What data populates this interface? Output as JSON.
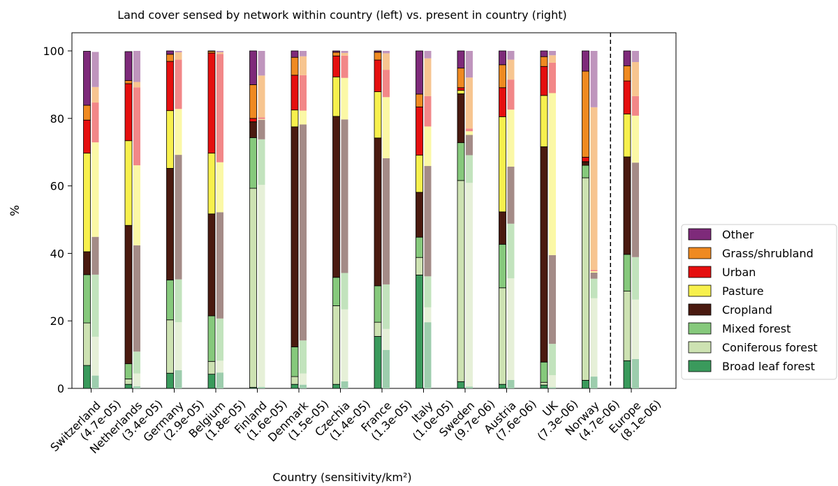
{
  "chart_data": {
    "type": "bar",
    "stacked": true,
    "title": "Land cover sensed by network within country (left) vs. present in country (right)",
    "xlabel": "Country (sensitivity/km²)",
    "ylabel": "%",
    "ylim": [
      0,
      100
    ],
    "yticks": [
      0,
      20,
      40,
      60,
      80,
      100
    ],
    "grid": false,
    "legend_position": "right",
    "groups": [
      {
        "country": "Switzerland",
        "sensitivity": "(4.7e-05)",
        "left": [
          6.8,
          12.6,
          14.3,
          6.8,
          29.2,
          9.8,
          4.4,
          16.0
        ],
        "right": [
          3.8,
          11.5,
          18.4,
          11.2,
          28.0,
          11.8,
          4.6,
          10.4
        ]
      },
      {
        "country": "Netherlands",
        "sensitivity": "(3.4e-05)",
        "left": [
          1.2,
          1.6,
          4.5,
          41.0,
          25.1,
          16.9,
          0.9,
          8.6
        ],
        "right": [
          0.6,
          3.8,
          6.5,
          31.5,
          23.7,
          23.1,
          1.6,
          9.2
        ]
      },
      {
        "country": "Germany",
        "sensitivity": "(2.9e-05)",
        "left": [
          4.5,
          15.8,
          11.8,
          33.1,
          17.1,
          14.6,
          2.1,
          1.0
        ],
        "right": [
          5.4,
          14.2,
          12.7,
          36.9,
          13.6,
          14.6,
          2.2,
          0.4
        ]
      },
      {
        "country": "Belgium",
        "sensitivity": "(1.8e-05)",
        "left": [
          4.2,
          3.8,
          13.5,
          30.2,
          18.0,
          29.7,
          0.5,
          0.1
        ],
        "right": [
          4.7,
          3.5,
          12.5,
          31.5,
          14.8,
          32.1,
          0.5,
          0.4
        ]
      },
      {
        "country": "Finland",
        "sensitivity": "(1.6e-05)",
        "left": [
          0.3,
          59.0,
          15.0,
          4.5,
          0.2,
          1.0,
          10.0,
          10.0
        ],
        "right": [
          0.4,
          59.9,
          13.5,
          5.8,
          0.2,
          0.5,
          12.4,
          7.3
        ]
      },
      {
        "country": "Denmark",
        "sensitivity": "(1.5e-05)",
        "left": [
          1.2,
          2.3,
          8.8,
          65.2,
          5.0,
          10.3,
          5.3,
          1.9
        ],
        "right": [
          1.1,
          3.3,
          9.8,
          64.0,
          4.1,
          10.5,
          5.6,
          1.6
        ]
      },
      {
        "country": "Czechia",
        "sensitivity": "(1.4e-05)",
        "left": [
          1.2,
          23.3,
          8.4,
          47.7,
          11.7,
          6.2,
          1.1,
          0.4
        ],
        "right": [
          2.1,
          21.3,
          10.8,
          45.5,
          12.3,
          6.6,
          0.8,
          0.6
        ]
      },
      {
        "country": "France",
        "sensitivity": "(1.3e-05)",
        "left": [
          15.4,
          4.2,
          10.8,
          43.8,
          13.7,
          9.4,
          2.3,
          0.4
        ],
        "right": [
          11.4,
          6.2,
          13.2,
          37.4,
          18.1,
          8.1,
          4.9,
          0.7
        ]
      },
      {
        "country": "Italy",
        "sensitivity": "(1.0e-05)",
        "left": [
          33.6,
          5.2,
          6.0,
          13.3,
          11.0,
          14.3,
          3.8,
          12.8
        ],
        "right": [
          19.6,
          4.4,
          9.2,
          32.7,
          11.7,
          9.0,
          11.2,
          2.2
        ]
      },
      {
        "country": "Sweden",
        "sensitivity": "(9.7e-06)",
        "left": [
          2.0,
          59.6,
          11.2,
          14.5,
          1.0,
          0.8,
          5.8,
          5.1
        ],
        "right": [
          0.5,
          60.4,
          8.2,
          6.0,
          1.1,
          0.8,
          15.1,
          7.9
        ]
      },
      {
        "country": "Austria",
        "sensitivity": "(7.6e-06)",
        "left": [
          1.2,
          28.6,
          12.9,
          9.6,
          28.2,
          8.6,
          6.8,
          4.1
        ],
        "right": [
          2.5,
          30.1,
          16.2,
          16.9,
          16.9,
          8.9,
          5.9,
          2.6
        ]
      },
      {
        "country": "UK",
        "sensitivity": "(7.3e-06)",
        "left": [
          1.0,
          0.8,
          6.0,
          63.8,
          15.2,
          8.6,
          2.9,
          1.7
        ],
        "right": [
          0.3,
          3.6,
          9.3,
          26.3,
          48.0,
          9.0,
          2.2,
          1.3
        ]
      },
      {
        "country": "Norway",
        "sensitivity": "(4.7e-06)",
        "left": [
          2.4,
          60.0,
          3.7,
          0.9,
          0.2,
          1.3,
          25.5,
          6.0
        ],
        "right": [
          3.5,
          23.2,
          5.8,
          1.8,
          0.4,
          0.4,
          48.2,
          16.7
        ]
      },
      {
        "country": "Europe",
        "sensitivity": "(8.1e-06)",
        "left": [
          8.2,
          20.6,
          10.9,
          28.9,
          12.7,
          9.8,
          4.5,
          4.4
        ],
        "right": [
          8.7,
          17.6,
          12.6,
          28.0,
          13.9,
          5.8,
          10.1,
          3.3
        ]
      }
    ],
    "separator_after": "Norway",
    "legend": [
      {
        "label": "Other",
        "color": "#7e2a7a"
      },
      {
        "label": "Grass/shrubland",
        "color": "#ef8a21"
      },
      {
        "label": "Urban",
        "color": "#e50f0f"
      },
      {
        "label": "Pasture",
        "color": "#f7f04d"
      },
      {
        "label": "Cropland",
        "color": "#4a1a10"
      },
      {
        "label": "Mixed forest",
        "color": "#86c97c"
      },
      {
        "label": "Coniferous forest",
        "color": "#cde2b2"
      },
      {
        "label": "Broad leaf forest",
        "color": "#3a9a5c"
      }
    ],
    "stack_order": [
      "Broad leaf forest",
      "Coniferous forest",
      "Mixed forest",
      "Cropland",
      "Pasture",
      "Urban",
      "Grass/shrubland",
      "Other"
    ],
    "colors_left": [
      "#3a9a5c",
      "#cde2b2",
      "#86c97c",
      "#4a1a10",
      "#f7f04d",
      "#e50f0f",
      "#ef8a21",
      "#7e2a7a"
    ],
    "colors_right": [
      "#9dcdad",
      "#e6f0d8",
      "#c2e3bd",
      "#a48b87",
      "#fbf8a6",
      "#f28788",
      "#f7c590",
      "#bf95bd"
    ]
  }
}
